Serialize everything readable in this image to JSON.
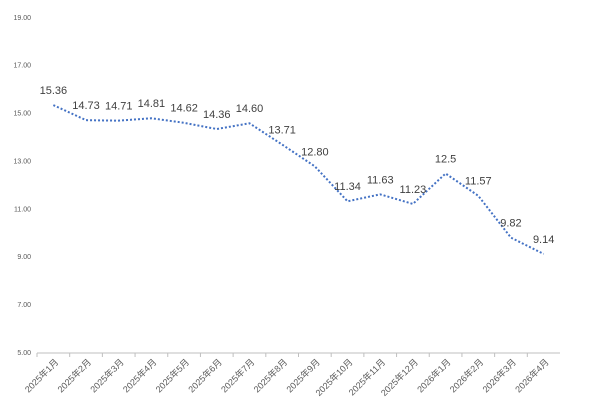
{
  "chart_data": {
    "type": "line",
    "categories": [
      "2025年1月",
      "2025年2月",
      "2025年3月",
      "2025年4月",
      "2025年5月",
      "2025年6月",
      "2025年7月",
      "2025年8月",
      "2025年9月",
      "2025年10月",
      "2025年11月",
      "2025年12月",
      "2026年1月",
      "2026年2月",
      "2026年3月",
      "2026年4月"
    ],
    "series": [
      {
        "color": "#4472c4",
        "values": [
          15.36,
          14.73,
          14.71,
          14.81,
          14.62,
          14.36,
          14.6,
          13.71,
          12.8,
          11.34,
          11.63,
          11.23,
          12.5,
          11.57,
          9.82,
          9.14
        ],
        "value_labels": [
          "15.36",
          "14.73",
          "14.71",
          "14.81",
          "14.62",
          "14.36",
          "14.60",
          "13.71",
          "12.80",
          "11.34",
          "11.63",
          "11.23",
          "12.5",
          "11.57",
          "9.82",
          "9.14"
        ]
      }
    ],
    "ylim": [
      5,
      19
    ],
    "yticks": [
      {
        "value": 5,
        "label": "5.00"
      },
      {
        "value": 7,
        "label": "7.00"
      },
      {
        "value": 9,
        "label": "9.00"
      },
      {
        "value": 11,
        "label": "11.00"
      },
      {
        "value": 13,
        "label": "13.00"
      },
      {
        "value": 15,
        "label": "15.00"
      },
      {
        "value": 17,
        "label": "17.00"
      },
      {
        "value": 19,
        "label": "19.00"
      }
    ],
    "grid": false
  }
}
